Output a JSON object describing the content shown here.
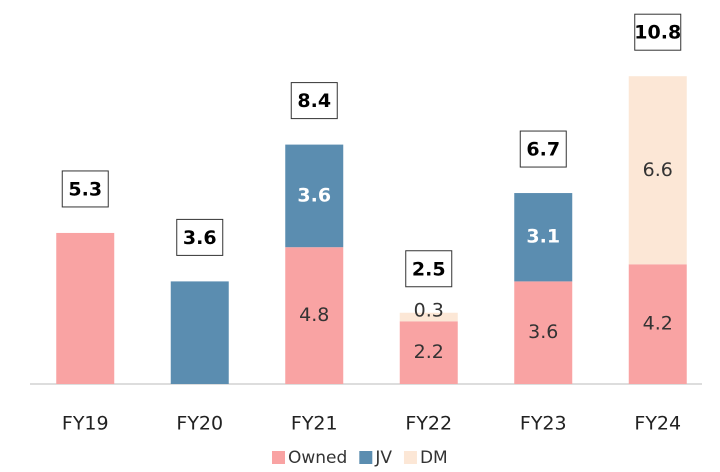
{
  "chart_data": {
    "type": "stacked-bar",
    "categories": [
      "FY19",
      "FY20",
      "FY21",
      "FY22",
      "FY23",
      "FY24"
    ],
    "series": [
      {
        "name": "Owned",
        "color": "#f9a3a3",
        "values": [
          5.3,
          null,
          4.8,
          2.2,
          3.6,
          4.2
        ]
      },
      {
        "name": "JV",
        "color": "#5b8db0",
        "values": [
          null,
          3.6,
          3.6,
          null,
          3.1,
          null
        ]
      },
      {
        "name": "DM",
        "color": "#fce7d6",
        "values": [
          null,
          null,
          null,
          0.3,
          null,
          6.6
        ]
      }
    ],
    "totals": [
      5.3,
      3.6,
      8.4,
      2.5,
      6.7,
      10.8
    ]
  }
}
